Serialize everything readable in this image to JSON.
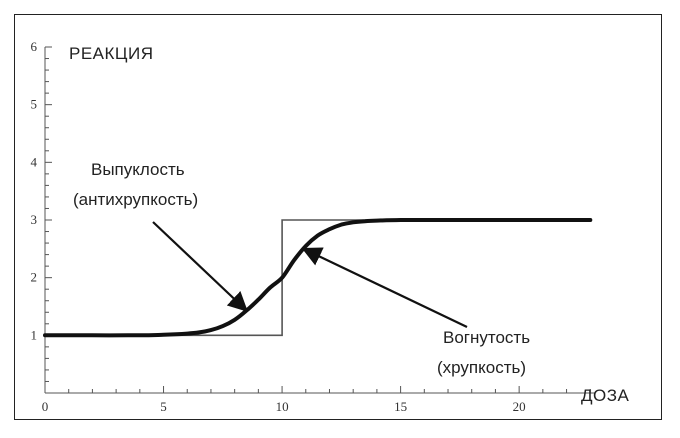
{
  "chart_data": {
    "type": "line",
    "xlabel": "ДОЗА",
    "ylabel": "РЕАКЦИЯ",
    "xlim": [
      0,
      23.2
    ],
    "ylim": [
      0,
      6
    ],
    "x_ticks": [
      "0",
      "5",
      "10",
      "15",
      "20"
    ],
    "y_ticks": [
      "1",
      "2",
      "3",
      "4",
      "5",
      "6"
    ],
    "grid": false,
    "series": [
      {
        "style": "smooth-thick",
        "color": "#111111",
        "x": [
          0,
          2,
          4,
          5,
          6,
          6.5,
          7,
          7.5,
          8,
          8.5,
          9,
          9.5,
          10,
          10.5,
          11,
          11.5,
          12,
          12.5,
          13,
          13.5,
          14,
          15,
          16,
          18,
          20,
          23
        ],
        "y": [
          1.0,
          1.0,
          1.0,
          1.01,
          1.03,
          1.05,
          1.09,
          1.16,
          1.27,
          1.43,
          1.62,
          1.83,
          2.0,
          2.3,
          2.55,
          2.73,
          2.84,
          2.92,
          2.96,
          2.98,
          2.99,
          3.0,
          3.0,
          3.0,
          3.0,
          3.0
        ]
      },
      {
        "style": "step-thin",
        "color": "#555555",
        "x": [
          0,
          10,
          10,
          23
        ],
        "y": [
          1,
          1,
          3,
          3
        ]
      }
    ],
    "annotations": [
      {
        "lines": [
          "Выпуклость",
          "(антихрупкость)"
        ],
        "arrow_to": [
          8.5,
          1.43
        ]
      },
      {
        "lines": [
          "Вогнутость",
          "(хрупкость)"
        ],
        "arrow_to": [
          10.9,
          2.5
        ]
      }
    ]
  }
}
